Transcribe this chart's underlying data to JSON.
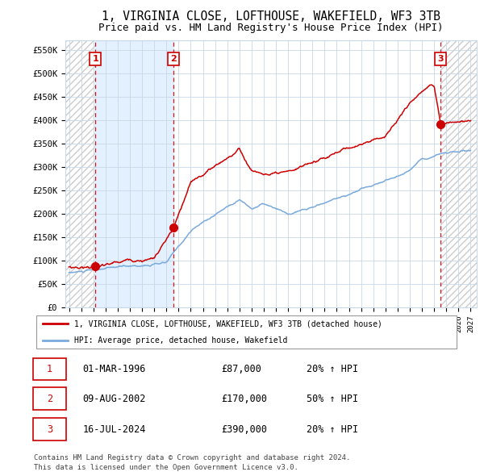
{
  "title": "1, VIRGINIA CLOSE, LOFTHOUSE, WAKEFIELD, WF3 3TB",
  "subtitle": "Price paid vs. HM Land Registry's House Price Index (HPI)",
  "title_fontsize": 10.5,
  "subtitle_fontsize": 9,
  "xlim_start": 1993.7,
  "xlim_end": 2027.5,
  "ylim_min": 0,
  "ylim_max": 570000,
  "yticks": [
    0,
    50000,
    100000,
    150000,
    200000,
    250000,
    300000,
    350000,
    400000,
    450000,
    500000,
    550000
  ],
  "ytick_labels": [
    "£0",
    "£50K",
    "£100K",
    "£150K",
    "£200K",
    "£250K",
    "£300K",
    "£350K",
    "£400K",
    "£450K",
    "£500K",
    "£550K"
  ],
  "sale_dates_year": [
    1996.17,
    2002.6,
    2024.54
  ],
  "sale_prices": [
    87000,
    170000,
    390000
  ],
  "sale_labels": [
    "1",
    "2",
    "3"
  ],
  "hpi_color": "#7aaadd",
  "price_color": "#cc0000",
  "bg_shade_color": "#ddeeff",
  "hatch_color": "#cccccc",
  "grid_color": "#c8d8e8",
  "annotation_label_color": "#cc0000",
  "legend_line1": "1, VIRGINIA CLOSE, LOFTHOUSE, WAKEFIELD, WF3 3TB (detached house)",
  "legend_line2": "HPI: Average price, detached house, Wakefield",
  "table_rows": [
    {
      "num": "1",
      "date": "01-MAR-1996",
      "price": "£87,000",
      "change": "20% ↑ HPI"
    },
    {
      "num": "2",
      "date": "09-AUG-2002",
      "price": "£170,000",
      "change": "50% ↑ HPI"
    },
    {
      "num": "3",
      "date": "16-JUL-2024",
      "price": "£390,000",
      "change": "20% ↑ HPI"
    }
  ],
  "footer": "Contains HM Land Registry data © Crown copyright and database right 2024.\nThis data is licensed under the Open Government Licence v3.0."
}
